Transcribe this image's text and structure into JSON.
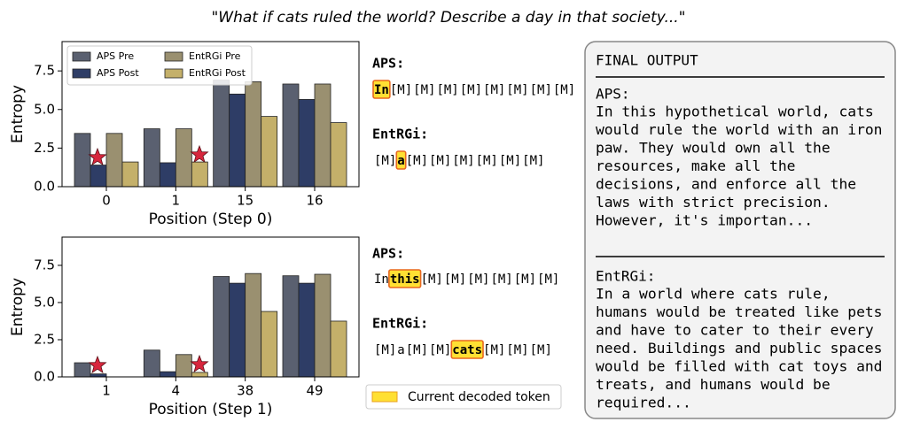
{
  "title": "\"What if cats ruled the world? Describe a day in that society...\"",
  "chart_data": [
    {
      "type": "bar",
      "categories": [
        "0",
        "1",
        "15",
        "16"
      ],
      "series": [
        {
          "name": "APS Pre",
          "color": "#5a6070",
          "values": [
            3.45,
            3.75,
            6.9,
            6.65
          ]
        },
        {
          "name": "APS Post",
          "color": "#2e3d66",
          "values": [
            1.4,
            1.55,
            6.0,
            5.65
          ]
        },
        {
          "name": "EntRGi Pre",
          "color": "#9a9070",
          "values": [
            3.45,
            3.75,
            6.8,
            6.65
          ]
        },
        {
          "name": "EntRGi Post",
          "color": "#c4b06a",
          "values": [
            1.6,
            1.6,
            4.55,
            4.15
          ]
        }
      ],
      "xlabel": "Position (Step 0)",
      "ylabel": "Entropy",
      "ylim": [
        0,
        9.4
      ],
      "yticks": [
        {
          "value": 0,
          "label": "0.0"
        },
        {
          "value": 2.5,
          "label": "2.5"
        },
        {
          "value": 5,
          "label": "5.0"
        },
        {
          "value": 7.5,
          "label": "7.5"
        }
      ],
      "legend": "upper left"
    },
    {
      "type": "bar",
      "categories": [
        "1",
        "4",
        "38",
        "49"
      ],
      "series": [
        {
          "name": "APS Pre",
          "color": "#5a6070",
          "values": [
            0.95,
            1.8,
            6.75,
            6.8
          ]
        },
        {
          "name": "APS Post",
          "color": "#2e3d66",
          "values": [
            0.2,
            0.35,
            6.3,
            6.3
          ]
        },
        {
          "name": "EntRGi Pre",
          "color": "#9a9070",
          "values": [
            0,
            1.5,
            6.95,
            6.9
          ]
        },
        {
          "name": "EntRGi Post",
          "color": "#c4b06a",
          "values": [
            0,
            0.3,
            4.4,
            3.75
          ]
        }
      ],
      "xlabel": "Position (Step 1)",
      "ylabel": "Entropy",
      "ylim": [
        0,
        9.4
      ],
      "yticks": [
        {
          "value": 0,
          "label": "0.0"
        },
        {
          "value": 2.5,
          "label": "2.5"
        },
        {
          "value": 5,
          "label": "5.0"
        },
        {
          "value": 7.5,
          "label": "7.5"
        }
      ]
    }
  ],
  "token_panels": [
    [
      {
        "label": "APS:",
        "tokens": [
          "In",
          "[M]",
          "[M]",
          "[M]",
          "[M]",
          "[M]",
          "[M]",
          "[M]",
          "[M]"
        ],
        "highlight": 0
      },
      {
        "label": "EntRGi:",
        "tokens": [
          "[M]",
          "a",
          "[M]",
          "[M]",
          "[M]",
          "[M]",
          "[M]",
          "[M]"
        ],
        "highlight": 1
      }
    ],
    [
      {
        "label": "APS:",
        "tokens": [
          "In",
          "this",
          "[M]",
          "[M]",
          "[M]",
          "[M]",
          "[M]",
          "[M]"
        ],
        "highlight": 1
      },
      {
        "label": "EntRGi:",
        "tokens": [
          "[M]",
          "a",
          "[M]",
          "[M]",
          "cats",
          "[M]",
          "[M]",
          "[M]"
        ],
        "highlight": 4
      }
    ]
  ],
  "token_legend": "Current decoded token",
  "final_output": {
    "heading": "FINAL OUTPUT",
    "sections": [
      {
        "label": "APS:",
        "lines": [
          "In this hypothetical world, cats",
          "would rule the world with an iron",
          "paw. They would own all the",
          "resources, make all the",
          "decisions, and enforce all the",
          "laws with strict precision.",
          "However, it's importan..."
        ]
      },
      {
        "label": "EntRGi:",
        "lines": [
          "In a world where cats rule,",
          "humans would be treated like pets",
          "and have to cater to their every",
          "need. Buildings and public spaces",
          "would be filled with cat toys and",
          "treats, and humans would be",
          "required..."
        ]
      }
    ]
  }
}
